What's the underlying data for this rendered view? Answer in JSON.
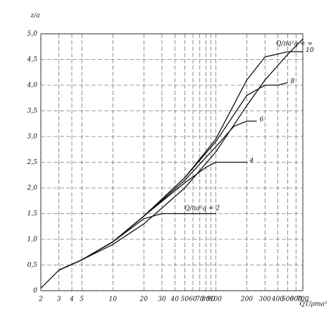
{
  "chart_data": {
    "type": "line",
    "y_label": "z/a",
    "x_label": "QT/ρma²",
    "annotations": [
      "Q/πa²q = 2",
      "Q/πa²q = ∞"
    ],
    "log_x": true,
    "grid": true,
    "color": "#111111",
    "xlim": [
      2,
      700
    ],
    "xticks": [
      2,
      3,
      4,
      5,
      10,
      20,
      30,
      40,
      50,
      60,
      70,
      80,
      90,
      100,
      200,
      300,
      400,
      500,
      600,
      700
    ],
    "ylim": [
      0,
      5
    ],
    "yticks": [
      0,
      {
        "value": 0.5,
        "label": "0,5"
      },
      {
        "value": 1,
        "label": "1,0"
      },
      {
        "value": 1.5,
        "label": "1,5"
      },
      {
        "value": 2,
        "label": "2,0"
      },
      {
        "value": 2.5,
        "label": "2,5"
      },
      {
        "value": 3,
        "label": "3,0"
      },
      {
        "value": 3.5,
        "label": "3,5"
      },
      {
        "value": 4,
        "label": "4,0"
      },
      {
        "value": 4.5,
        "label": "4,5"
      },
      {
        "value": 5,
        "label": "5,0"
      }
    ],
    "series": [
      {
        "x": [
          3,
          5,
          10,
          20,
          30,
          50,
          100
        ],
        "values": [
          0.4,
          0.6,
          0.95,
          1.4,
          1.5,
          1.5,
          1.5
        ]
      },
      {
        "name": "4",
        "x": [
          3,
          5,
          10,
          20,
          50,
          80,
          100,
          200
        ],
        "values": [
          0.4,
          0.6,
          0.95,
          1.45,
          2.1,
          2.4,
          2.5,
          2.5
        ]
      },
      {
        "name": "6",
        "x": [
          3,
          5,
          10,
          20,
          50,
          100,
          150,
          200,
          250
        ],
        "values": [
          0.4,
          0.6,
          0.95,
          1.45,
          2.15,
          2.8,
          3.2,
          3.3,
          3.3
        ]
      },
      {
        "name": "8",
        "x": [
          3,
          5,
          10,
          20,
          50,
          100,
          200,
          300,
          400,
          500
        ],
        "values": [
          0.4,
          0.6,
          0.95,
          1.45,
          2.2,
          2.9,
          3.8,
          4.0,
          4.0,
          4.05
        ]
      },
      {
        "name": "10",
        "x": [
          3,
          5,
          10,
          20,
          50,
          100,
          200,
          300,
          500,
          700
        ],
        "values": [
          0.4,
          0.6,
          0.95,
          1.45,
          2.2,
          2.95,
          4.1,
          4.55,
          4.65,
          4.65
        ]
      },
      {
        "x": [
          2,
          3,
          5,
          10,
          20,
          50,
          100,
          200,
          300,
          500,
          700
        ],
        "values": [
          0.05,
          0.4,
          0.6,
          0.9,
          1.3,
          2.0,
          2.7,
          3.6,
          4.1,
          4.6,
          4.9
        ]
      }
    ]
  }
}
